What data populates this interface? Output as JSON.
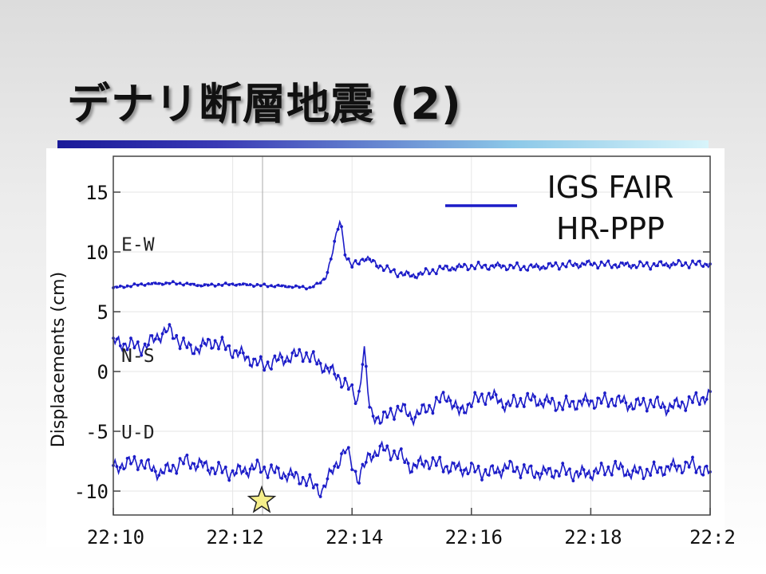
{
  "slide": {
    "title": "デナリ断層地震 (2)"
  },
  "chart_data": {
    "type": "line",
    "ylabel": "Displacements (cm)",
    "xlim": [
      0,
      10
    ],
    "ylim": [
      -12,
      18
    ],
    "yticks": [
      15,
      10,
      5,
      0,
      -5,
      -10
    ],
    "ytick_labels": [
      "15",
      "10",
      "5",
      "0",
      "-5",
      "-10"
    ],
    "xticks": [
      0,
      2,
      4,
      6,
      8,
      10
    ],
    "xtick_labels": [
      "22:10",
      "22:12",
      "22:14",
      "22:16",
      "22:18",
      "22:2"
    ],
    "event_time": 2.5,
    "legend": {
      "lines": [
        "IGS FAIR",
        "HR-PPP"
      ],
      "position": "top-right"
    },
    "line_color": "#1c1cc8",
    "event_marker_color": "#f5ee8a",
    "series": [
      {
        "name": "E-W",
        "x": [
          0,
          0.5,
          1,
          1.5,
          2,
          2.5,
          3,
          3.3,
          3.5,
          3.6,
          3.7,
          3.8,
          3.9,
          4.0,
          4.2,
          4.4,
          4.6,
          4.8,
          5.0,
          5.5,
          6.0,
          6.5,
          7.0,
          7.5,
          8.0,
          8.5,
          9.0,
          9.5,
          10
        ],
        "y": [
          7,
          7.3,
          7.4,
          7.2,
          7.3,
          7.2,
          7.1,
          7.0,
          7.5,
          8.5,
          10.5,
          12.8,
          9.5,
          8.8,
          9.5,
          9.0,
          8.5,
          8.2,
          8.0,
          8.6,
          8.8,
          8.8,
          8.7,
          8.9,
          9.0,
          8.9,
          8.9,
          9.0,
          9.0
        ]
      },
      {
        "name": "N-S",
        "x": [
          0,
          0.5,
          0.9,
          1.3,
          1.7,
          2.1,
          2.5,
          2.8,
          3.2,
          3.6,
          3.9,
          4.1,
          4.2,
          4.3,
          4.5,
          4.8,
          5.0,
          5.3,
          5.6,
          5.8,
          6.0,
          6.3,
          6.6,
          6.9,
          7.2,
          7.5,
          7.8,
          8.1,
          8.4,
          8.7,
          9.0,
          9.3,
          9.6,
          10
        ],
        "y": [
          2.5,
          2.0,
          3.5,
          1.8,
          2.5,
          1.5,
          0.5,
          1.0,
          1.5,
          0.2,
          -1.0,
          -2.5,
          2.0,
          -3.5,
          -4.0,
          -3.0,
          -3.8,
          -3.0,
          -2.0,
          -3.5,
          -2.5,
          -2.0,
          -2.8,
          -2.3,
          -2.5,
          -2.8,
          -2.6,
          -2.5,
          -2.4,
          -2.8,
          -2.6,
          -3.0,
          -2.6,
          -2.0
        ]
      },
      {
        "name": "U-D",
        "x": [
          0,
          0.4,
          0.8,
          1.2,
          1.6,
          2.0,
          2.4,
          2.8,
          3.2,
          3.5,
          3.7,
          3.9,
          4.1,
          4.3,
          4.5,
          4.8,
          5.0,
          5.3,
          5.6,
          6.0,
          6.3,
          6.6,
          6.9,
          7.2,
          7.5,
          7.8,
          8.1,
          8.4,
          8.7,
          9.0,
          9.4,
          9.7,
          10
        ],
        "y": [
          -8.0,
          -7.5,
          -8.5,
          -7.5,
          -8.0,
          -8.5,
          -8.0,
          -8.5,
          -9.0,
          -10.0,
          -8.0,
          -6.5,
          -9.0,
          -7.0,
          -6.5,
          -7.0,
          -8.0,
          -7.5,
          -8.0,
          -8.2,
          -8.5,
          -8.0,
          -8.3,
          -8.5,
          -8.3,
          -8.6,
          -8.4,
          -8.0,
          -8.5,
          -8.3,
          -8.0,
          -7.8,
          -8.5
        ]
      }
    ]
  }
}
